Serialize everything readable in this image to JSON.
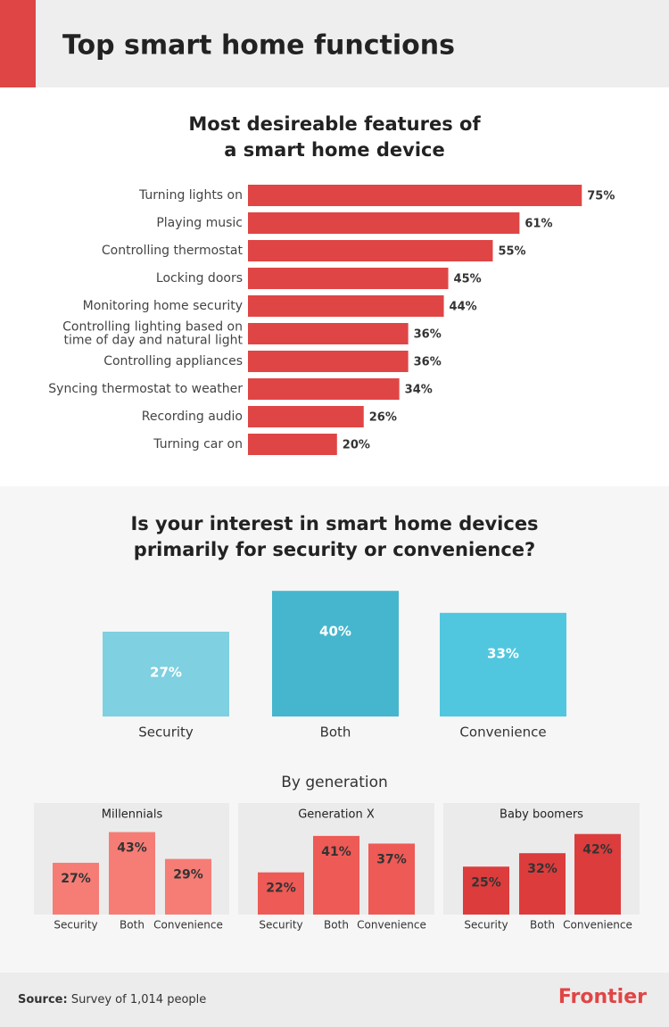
{
  "header": {
    "title": "Top smart home functions"
  },
  "chart_data": [
    {
      "type": "bar",
      "orientation": "horizontal",
      "title": [
        "Most desireable features of",
        "a smart home device"
      ],
      "categories": [
        "Turning lights on",
        "Playing music",
        "Controlling thermostat",
        "Locking doors",
        "Monitoring home security",
        [
          "Controlling lighting based on",
          "time of day and natural light"
        ],
        "Controlling appliances",
        "Syncing thermostat to weather",
        "Recording audio",
        "Turning car on"
      ],
      "values": [
        75,
        61,
        55,
        45,
        44,
        36,
        36,
        34,
        26,
        20
      ],
      "value_labels": [
        "75%",
        "61%",
        "55%",
        "45%",
        "44%",
        "36%",
        "36%",
        "34%",
        "26%",
        "20%"
      ],
      "color": "#e04545"
    },
    {
      "type": "bar",
      "orientation": "vertical",
      "title": [
        "Is your interest in smart home devices",
        "primarily for security or convenience?"
      ],
      "categories": [
        "Security",
        "Both",
        "Convenience"
      ],
      "values": [
        27,
        40,
        33
      ],
      "value_labels": [
        "27%",
        "40%",
        "33%"
      ],
      "colors": [
        "#7fd0e0",
        "#45b6cd",
        "#50c7df"
      ]
    },
    {
      "type": "bar",
      "orientation": "vertical",
      "title": "Millennials",
      "categories": [
        "Security",
        "Both",
        "Convenience"
      ],
      "values": [
        27,
        43,
        29
      ],
      "value_labels": [
        "27%",
        "43%",
        "29%"
      ],
      "color": "#f57d76"
    },
    {
      "type": "bar",
      "orientation": "vertical",
      "title": "Generation X",
      "categories": [
        "Security",
        "Both",
        "Convenience"
      ],
      "values": [
        22,
        41,
        37
      ],
      "value_labels": [
        "22%",
        "41%",
        "37%"
      ],
      "color": "#ee5a55"
    },
    {
      "type": "bar",
      "orientation": "vertical",
      "title": "Baby boomers",
      "categories": [
        "Security",
        "Both",
        "Convenience"
      ],
      "values": [
        25,
        32,
        42
      ],
      "value_labels": [
        "25%",
        "32%",
        "42%"
      ],
      "color": "#dc3c3c"
    }
  ],
  "generation_heading": "By generation",
  "footer": {
    "source_label": "Source:",
    "source_text": "Survey of 1,014 people",
    "logo": "Frontier"
  }
}
